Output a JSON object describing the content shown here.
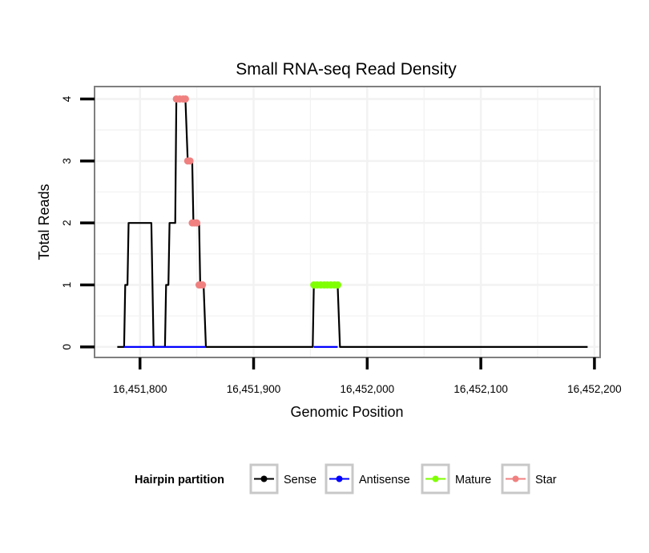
{
  "chart_data": {
    "type": "line",
    "title": "Small RNA-seq Read Density",
    "xlabel": "Genomic Position",
    "ylabel": "Total Reads",
    "xlim": [
      16451760,
      16452205
    ],
    "ylim": [
      -0.17,
      4.2
    ],
    "x_ticks": [
      16451800,
      16451900,
      16452000,
      16452100,
      16452200
    ],
    "x_tick_labels": [
      "16,451,800",
      "16,451,900",
      "16,452,000",
      "16,452,100",
      "16,452,200"
    ],
    "y_ticks": [
      0,
      1,
      2,
      3,
      4
    ],
    "y_tick_labels": [
      "0",
      "1",
      "2",
      "3",
      "4"
    ],
    "grid": true,
    "legend": {
      "title": "Hairpin partition",
      "position": "bottom"
    },
    "series": [
      {
        "name": "Sense",
        "color": "#000000",
        "style": "line",
        "x": [
          16451780,
          16451786,
          16451787,
          16451789,
          16451790,
          16451810,
          16451812,
          16451822,
          16451823,
          16451825,
          16451826,
          16451831,
          16451832,
          16451840,
          16451842,
          16451846,
          16451847,
          16451852,
          16451853,
          16451856,
          16451858,
          16451952,
          16451953,
          16451974,
          16451976,
          16452194
        ],
        "y": [
          0,
          0,
          1,
          1,
          2,
          2,
          0,
          0,
          1,
          1,
          2,
          2,
          4,
          4,
          3,
          3,
          2,
          2,
          1,
          1,
          0,
          0,
          1,
          1,
          0,
          0
        ]
      },
      {
        "name": "Antisense",
        "color": "#0000ff",
        "style": "line",
        "x": [
          16451786,
          16451858,
          16451953,
          16451974
        ],
        "y": [
          0,
          0,
          0,
          0
        ],
        "segments": [
          [
            0,
            1
          ],
          [
            2,
            3
          ]
        ]
      },
      {
        "name": "Mature",
        "color": "#7fff00",
        "style": "points",
        "x": [
          16451953,
          16451956,
          16451959,
          16451962,
          16451965,
          16451968,
          16451971,
          16451974
        ],
        "y": [
          1,
          1,
          1,
          1,
          1,
          1,
          1,
          1
        ]
      },
      {
        "name": "Star",
        "color": "#f08080",
        "style": "points",
        "x": [
          16451832,
          16451835,
          16451838,
          16451840,
          16451842,
          16451844,
          16451846,
          16451848,
          16451850,
          16451852,
          16451853,
          16451855
        ],
        "y": [
          4,
          4,
          4,
          4,
          3,
          3,
          2,
          2,
          2,
          1,
          1,
          1
        ]
      }
    ]
  }
}
